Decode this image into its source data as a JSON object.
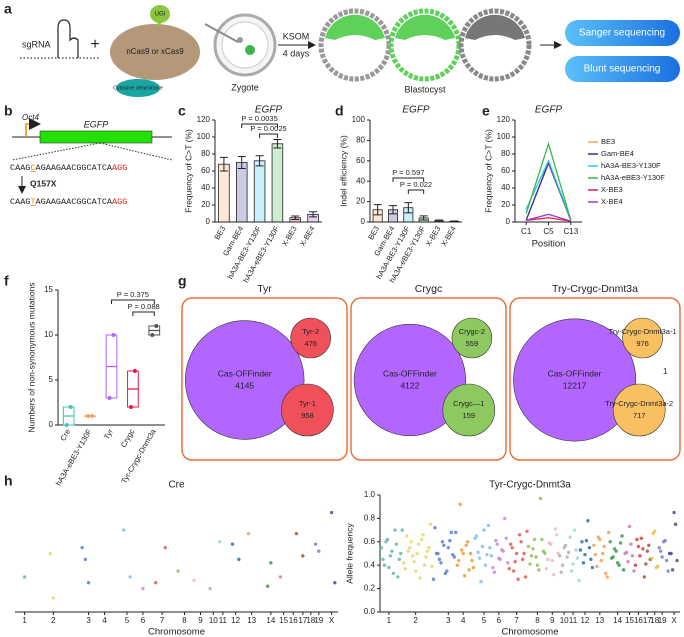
{
  "panel_labels": [
    "a",
    "b",
    "c",
    "d",
    "e",
    "f",
    "g",
    "h"
  ],
  "schematic": {
    "sgrna": "sgRNA",
    "plus": "+",
    "ugi": "UGI",
    "cas": "nCas9  or xCas9",
    "deaminase": "Cytosine deaminase",
    "zygote": "Zygote",
    "ksom": "KSOM",
    "days": "4 days",
    "blastocyst": "Blastocyst",
    "sanger": "Sanger sequencing",
    "blunt": "Blunt sequencing"
  },
  "construct": {
    "promoter": "Oct4",
    "gene": "EGFP",
    "seq_wt": [
      "CAAG",
      "C",
      "AGAAGAACGGCATCA",
      "AGG"
    ],
    "mutation": "Q157X",
    "seq_mut": [
      "CAAG",
      "T",
      "AGAAGAACGGCATCA",
      "AGG"
    ]
  },
  "chart_data": [
    {
      "type": "bar",
      "title": "EGFP",
      "y_label": "Frequency of C>T (%)",
      "categories": [
        "BE3",
        "Gam-BE4",
        "hA3A-BE3-Y130F",
        "hA3A-eBE3-Y130F",
        "X-BE3",
        "X-BE4"
      ],
      "values": [
        68,
        70,
        72,
        92,
        5,
        9
      ],
      "errors": [
        8,
        7,
        6,
        5,
        2,
        3
      ],
      "colors": [
        "#f4a460",
        "#2e3192",
        "#29c5f6",
        "#3cb44b",
        "#e6194b",
        "#9b3fc9"
      ],
      "ylim": [
        0,
        120
      ],
      "yticks": [
        0,
        20,
        40,
        60,
        80,
        100,
        120
      ],
      "annotations": [
        "P = 0.0035",
        "P = 0.0025"
      ]
    },
    {
      "type": "bar",
      "title": "EGFP",
      "y_label": "Indel efficiency (%)",
      "categories": [
        "BE3",
        "Gam-BE4",
        "hA3A-BE3-Y130F",
        "hA3A-eBE3-Y130F",
        "X-BE3",
        "X-BE4"
      ],
      "values": [
        12,
        12,
        14,
        4,
        1,
        0.5
      ],
      "errors": [
        5,
        4,
        5,
        2,
        1,
        0.5
      ],
      "colors": [
        "#f4a460",
        "#2e3192",
        "#29c5f6",
        "#3cb44b",
        "#e6194b",
        "#9b3fc9"
      ],
      "ylim": [
        0,
        100
      ],
      "yticks": [
        0,
        20,
        40,
        60,
        80,
        100
      ],
      "annotations": [
        "P = 0.597",
        "P = 0.022"
      ]
    },
    {
      "type": "line",
      "title": "EGFP",
      "y_label": "Frequency of C>T (%)",
      "x_label": "Position",
      "categories": [
        "C1",
        "C5",
        "C13"
      ],
      "ylim": [
        0,
        120
      ],
      "yticks": [
        0,
        20,
        40,
        60,
        80,
        100,
        120
      ],
      "legend": "right",
      "series": [
        {
          "name": "BE3",
          "color": "#f4a460",
          "values": [
            3,
            68,
            2
          ]
        },
        {
          "name": "Gam-BE4",
          "color": "#2e3192",
          "values": [
            2,
            70,
            2
          ]
        },
        {
          "name": "hA3A-BE3-Y130F",
          "color": "#29c5f6",
          "values": [
            15,
            72,
            3
          ]
        },
        {
          "name": "hA3A-eBE3-Y130F",
          "color": "#3cb44b",
          "values": [
            10,
            92,
            2
          ]
        },
        {
          "name": "X-BE3",
          "color": "#e6194b",
          "values": [
            2,
            5,
            1
          ]
        },
        {
          "name": "X-BE4",
          "color": "#9b3fc9",
          "values": [
            2,
            9,
            1
          ]
        }
      ]
    },
    {
      "type": "box",
      "y_label": "Numbers of non-synonymous mutations",
      "categories": [
        "Cre",
        "hA3A-eBE3-Y130F",
        "Tyr",
        "Crygc",
        "Tyr-Crygc-Dnmt3a"
      ],
      "low": [
        0,
        1,
        3,
        2,
        10
      ],
      "median": [
        1,
        1,
        6.5,
        4,
        10.5
      ],
      "high": [
        2,
        1,
        10,
        6,
        11
      ],
      "colors": [
        "#3cc8b4",
        "#f4a460",
        "#b366ff",
        "#e6194b",
        "#555555"
      ],
      "ylim": [
        0,
        15
      ],
      "yticks": [
        0,
        5,
        10,
        15
      ],
      "annotations": [
        "P = 0.375",
        "P = 0.088"
      ]
    },
    {
      "type": "scatter",
      "title": "Cre",
      "x_label": "Chromosome",
      "xlim": [
        0,
        101
      ],
      "ylim": [
        0,
        1
      ],
      "xticks": [
        {
          "value": 3,
          "label": "1"
        },
        {
          "value": 12,
          "label": "2"
        },
        {
          "value": 23,
          "label": "3"
        },
        {
          "value": 28,
          "label": "4"
        },
        {
          "value": 35,
          "label": "5"
        },
        {
          "value": 40,
          "label": "6"
        },
        {
          "value": 46,
          "label": "7"
        },
        {
          "value": 53,
          "label": "8"
        },
        {
          "value": 58,
          "label": "9"
        },
        {
          "value": 62,
          "label": "10"
        },
        {
          "value": 65,
          "label": "11"
        },
        {
          "value": 69,
          "label": "12"
        },
        {
          "value": 74,
          "label": "13"
        },
        {
          "value": 80,
          "label": "14"
        },
        {
          "value": 84,
          "label": "15"
        },
        {
          "value": 87,
          "label": "16"
        },
        {
          "value": 90,
          "label": "17"
        },
        {
          "value": 92.5,
          "label": "18"
        },
        {
          "value": 95,
          "label": "19"
        },
        {
          "value": 99,
          "label": "X"
        }
      ],
      "chromosome_colors": [
        "#5fb8b0",
        "#e8d86a",
        "#5a7fd0",
        "#f09a30",
        "#7cc0e8",
        "#c88ad0",
        "#e05a5a",
        "#8fbf5a",
        "#f2b5c8",
        "#b0b0b0",
        "#9fd8d0",
        "#2a6fb0",
        "#f5a05a",
        "#3a9a4a",
        "#d07ab8",
        "#e03a3a",
        "#a0522d",
        "#f0c040",
        "#7a7ad8",
        "#4a4a9a"
      ],
      "x": [
        3,
        11,
        12,
        21,
        22,
        23,
        34,
        36,
        40,
        44,
        47,
        51,
        56,
        61,
        64,
        68,
        70,
        73,
        79,
        80,
        83,
        88,
        90,
        94,
        95,
        99,
        100
      ],
      "y": [
        0.3,
        0.5,
        0.12,
        0.55,
        0.45,
        0.25,
        0.7,
        0.3,
        0.2,
        0.25,
        0.55,
        0.35,
        0.27,
        0.2,
        0.6,
        0.58,
        0.45,
        0.67,
        0.22,
        0.42,
        0.3,
        0.67,
        0.48,
        0.58,
        0.52,
        0.85,
        0.25
      ]
    },
    {
      "type": "scatter",
      "title": "Tyr-Crygc-Dnmt3a",
      "x_label": "Chromosome",
      "y_label": "Allele frequency",
      "xlim": [
        0,
        101
      ],
      "ylim": [
        0,
        1
      ],
      "yticks": [
        {
          "value": 0,
          "label": "0.0"
        },
        {
          "value": 0.2,
          "label": "0.2"
        },
        {
          "value": 0.4,
          "label": "0.4"
        },
        {
          "value": 0.6,
          "label": "0.6"
        },
        {
          "value": 0.8,
          "label": "0.8"
        },
        {
          "value": 1,
          "label": "1.0"
        }
      ],
      "xticks": [
        {
          "value": 3,
          "label": "1"
        },
        {
          "value": 12,
          "label": "2"
        },
        {
          "value": 23,
          "label": "3"
        },
        {
          "value": 28,
          "label": "4"
        },
        {
          "value": 35,
          "label": "5"
        },
        {
          "value": 40,
          "label": "6"
        },
        {
          "value": 46,
          "label": "7"
        },
        {
          "value": 53,
          "label": "8"
        },
        {
          "value": 58,
          "label": "9"
        },
        {
          "value": 62,
          "label": "10"
        },
        {
          "value": 65,
          "label": "11"
        },
        {
          "value": 69,
          "label": "12"
        },
        {
          "value": 74,
          "label": "13"
        },
        {
          "value": 80,
          "label": "14"
        },
        {
          "value": 84,
          "label": "15"
        },
        {
          "value": 87,
          "label": "16"
        },
        {
          "value": 90,
          "label": "17"
        },
        {
          "value": 92.5,
          "label": "18"
        },
        {
          "value": 95,
          "label": "19"
        },
        {
          "value": 99,
          "label": "X"
        }
      ],
      "chromosome_colors": [
        "#5fb8b0",
        "#e8d86a",
        "#5a7fd0",
        "#f09a30",
        "#7cc0e8",
        "#c88ad0",
        "#e05a5a",
        "#8fbf5a",
        "#f2b5c8",
        "#b0b0b0",
        "#9fd8d0",
        "#2a6fb0",
        "#f5a05a",
        "#3a9a4a",
        "#d07ab8",
        "#e03a3a",
        "#a0522d",
        "#f0c040",
        "#7a7ad8",
        "#4a4a9a"
      ],
      "x": [
        1,
        2,
        3,
        4,
        5,
        6,
        7,
        8,
        9,
        10,
        11,
        12,
        13,
        14,
        15,
        16,
        17,
        18,
        19,
        20,
        21,
        22,
        23,
        24,
        25,
        26,
        27,
        28,
        29,
        30,
        31,
        32,
        33,
        34,
        35,
        36,
        37,
        38,
        39,
        40,
        41,
        42,
        43,
        44,
        45,
        46,
        47,
        48,
        49,
        50,
        51,
        52,
        53,
        54,
        55,
        56,
        57,
        58,
        59,
        60,
        61,
        62,
        63,
        64,
        65,
        66,
        67,
        68,
        69,
        70,
        71,
        72,
        73,
        74,
        75,
        76,
        77,
        78,
        79,
        80,
        81,
        82,
        83,
        84,
        85,
        86,
        87,
        88,
        89,
        90,
        91,
        92,
        93,
        94,
        95,
        96,
        97,
        98,
        99,
        100,
        0.5,
        1.5,
        2.5,
        3.5,
        4.5,
        5.5,
        6.5,
        7.5,
        8.5,
        9.5,
        10.5,
        11.5,
        12.5,
        13.5,
        14.5,
        15.5,
        16.5,
        17.5,
        18.5,
        19.5,
        20.5,
        21.5,
        22.5,
        23.5,
        24.5,
        25.5,
        26.5,
        27.5,
        28.5,
        29.5,
        30.5,
        31.5,
        32.5,
        33.5,
        34.5,
        35.5,
        36.5,
        37.5,
        38.5,
        39.5,
        40.5,
        41.5,
        42.5,
        43.5,
        44.5,
        45.5,
        46.5,
        47.5,
        48.5,
        49.5,
        50.5,
        51.5,
        52.5,
        53.5,
        54.5,
        55.5,
        56.5,
        57.5,
        58.5,
        59.5,
        60.5,
        61.5,
        62.5,
        63.5,
        64.5,
        65.5,
        66.5,
        67.5,
        68.5,
        69.5,
        70.5,
        71.5,
        72.5,
        73.5,
        74.5,
        75.5,
        76.5,
        77.5,
        78.5,
        79.5,
        80.5,
        81.5,
        82.5,
        83.5,
        84.5,
        85.5,
        86.5,
        87.5,
        88.5,
        89.5,
        90.5,
        91.5,
        92.5,
        93.5,
        94.5,
        95.5,
        96.5,
        97.5,
        98.5,
        99.5
      ],
      "y": [
        0.45,
        0.6,
        0.38,
        0.52,
        0.7,
        0.3,
        0.5,
        0.42,
        0.65,
        0.55,
        0.48,
        0.35,
        0.58,
        0.62,
        0.4,
        0.52,
        0.75,
        0.28,
        0.5,
        0.45,
        0.6,
        0.33,
        0.55,
        0.68,
        0.47,
        0.4,
        0.92,
        0.5,
        0.57,
        0.36,
        0.44,
        0.63,
        0.51,
        0.26,
        0.7,
        0.49,
        0.55,
        0.38,
        0.61,
        0.46,
        0.53,
        0.8,
        0.42,
        0.58,
        0.35,
        0.5,
        0.66,
        0.45,
        0.3,
        0.56,
        0.48,
        0.62,
        0.4,
        0.97,
        0.52,
        0.37,
        0.59,
        0.44,
        0.71,
        0.5,
        0.34,
        0.55,
        0.47,
        0.64,
        0.41,
        0.53,
        0.27,
        0.6,
        0.49,
        0.78,
        0.45,
        0.57,
        0.39,
        0.62,
        0.5,
        0.33,
        0.68,
        0.46,
        0.54,
        0.42,
        0.59,
        0.36,
        0.51,
        0.73,
        0.48,
        0.4,
        0.56,
        0.63,
        0.3,
        0.52,
        0.45,
        0.67,
        0.38,
        0.55,
        0.47,
        0.61,
        0.35,
        0.5,
        0.85,
        0.44,
        0.55,
        0.4,
        0.62,
        0.48,
        0.33,
        0.58,
        0.45,
        0.7,
        0.37,
        0.52,
        0.6,
        0.43,
        0.5,
        0.29,
        0.66,
        0.47,
        0.55,
        0.39,
        0.72,
        0.5,
        0.42,
        0.57,
        0.35,
        0.61,
        0.49,
        0.68,
        0.44,
        0.53,
        0.31,
        0.6,
        0.5,
        0.38,
        0.65,
        0.46,
        0.56,
        0.4,
        0.74,
        0.48,
        0.34,
        0.58,
        0.45,
        0.52,
        0.63,
        0.37,
        0.55,
        0.43,
        0.28,
        0.6,
        0.5,
        0.69,
        0.41,
        0.54,
        0.47,
        0.36,
        0.62,
        0.5,
        0.45,
        0.58,
        0.32,
        0.66,
        0.48,
        0.4,
        0.57,
        0.51,
        0.35,
        0.7,
        0.46,
        0.53,
        0.42,
        0.61,
        0.55,
        0.38,
        0.49,
        0.64,
        0.44,
        0.56,
        0.3,
        0.6,
        0.47,
        0.52,
        0.4,
        0.65,
        0.5,
        0.43,
        0.58,
        0.35,
        0.62,
        0.48,
        0.54,
        0.41,
        0.57,
        0.46,
        0.69,
        0.39,
        0.52,
        0.6,
        0.44,
        0.5,
        0.36,
        0.75
      ]
    }
  ],
  "venn": [
    {
      "title": "Tyr",
      "sets": [
        {
          "label": "Cas-OFFinder",
          "count": 4145,
          "color": "#b366ff"
        },
        {
          "label": "Tyr-2",
          "count": 476,
          "color": "#f0505a"
        },
        {
          "label": "Tyr-1",
          "count": 958,
          "color": "#f0505a"
        }
      ]
    },
    {
      "title": "Crygc",
      "sets": [
        {
          "label": "Cas-OFFinder",
          "count": 4122,
          "color": "#b366ff"
        },
        {
          "label": "Crygc-2",
          "count": 559,
          "color": "#8dc860"
        },
        {
          "label": "Crygc—1",
          "count": 159,
          "color": "#8dc860"
        }
      ]
    },
    {
      "title": "Try-Crygc-Dnmt3a",
      "overlap_count": 1,
      "sets": [
        {
          "label": "Cas-OFFinder",
          "count": 12217,
          "color": "#b366ff"
        },
        {
          "label": "Try-Crygc-Dnmt3a-1",
          "count": 976,
          "color": "#f8c060"
        },
        {
          "label": "Try-Crygc-Dnmt3a-2",
          "count": 717,
          "color": "#f8c060"
        }
      ]
    }
  ]
}
